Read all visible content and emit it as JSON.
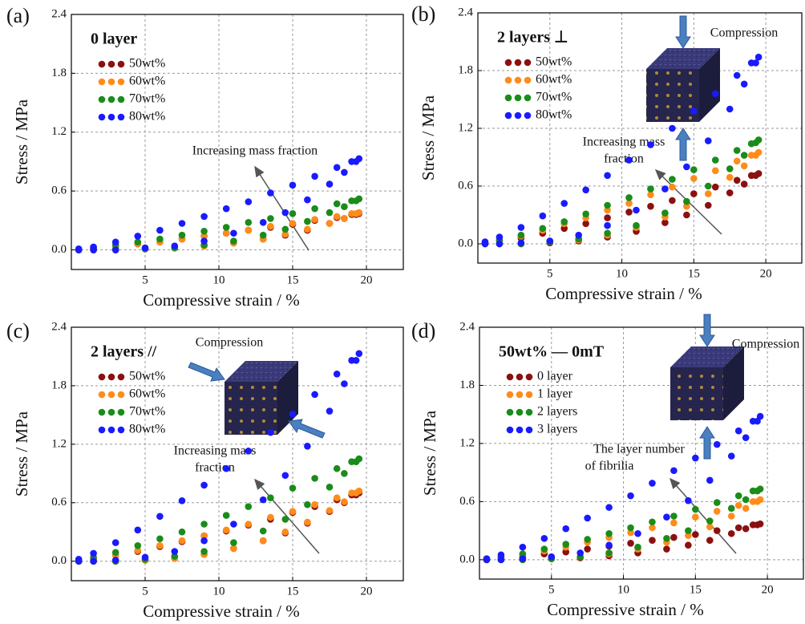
{
  "chart_data": [
    {
      "type": "scatter",
      "panel_label": "(a)",
      "legend_title": "0 layer",
      "xlabel": "Compressive strain / %",
      "ylabel": "Stress / MPa",
      "annotations": [
        "Increasing mass fraction"
      ],
      "xlim": [
        0,
        22.5
      ],
      "ylim": [
        -0.2,
        2.4
      ],
      "xticks": [
        5,
        10,
        15,
        20
      ],
      "yticks": [
        {
          "value": 0,
          "label": "0.0"
        },
        0.6,
        1.2,
        1.8,
        2.4
      ],
      "grid": true,
      "x": [
        0.5,
        1.5,
        3,
        4.5,
        6,
        7.5,
        9,
        10.5,
        12,
        13.5,
        15,
        16.5,
        18,
        19,
        19.5,
        19.3,
        18.5,
        17.5,
        16,
        14.5,
        13,
        11,
        9,
        7,
        5,
        3,
        1.5,
        0.5
      ],
      "series": [
        {
          "name": "50wt%",
          "color": "#8b1010",
          "values": [
            0,
            0.01,
            0.03,
            0.06,
            0.08,
            0.11,
            0.14,
            0.17,
            0.2,
            0.23,
            0.26,
            0.3,
            0.33,
            0.36,
            0.37,
            0.36,
            0.32,
            0.27,
            0.2,
            0.15,
            0.11,
            0.07,
            0.04,
            0.02,
            0.01,
            0,
            0,
            0
          ]
        },
        {
          "name": "60wt%",
          "color": "#ff8c1a",
          "values": [
            0,
            0.01,
            0.03,
            0.06,
            0.08,
            0.11,
            0.14,
            0.17,
            0.2,
            0.24,
            0.27,
            0.31,
            0.34,
            0.37,
            0.38,
            0.37,
            0.32,
            0.27,
            0.21,
            0.16,
            0.11,
            0.07,
            0.04,
            0.02,
            0.01,
            0,
            0,
            0
          ]
        },
        {
          "name": "70wt%",
          "color": "#1a8c1a",
          "values": [
            0,
            0.02,
            0.05,
            0.08,
            0.11,
            0.15,
            0.19,
            0.23,
            0.28,
            0.32,
            0.37,
            0.42,
            0.47,
            0.5,
            0.52,
            0.5,
            0.44,
            0.38,
            0.29,
            0.21,
            0.15,
            0.09,
            0.05,
            0.02,
            0.01,
            0,
            0,
            0
          ]
        },
        {
          "name": "80wt%",
          "color": "#1a1aff",
          "values": [
            0.01,
            0.03,
            0.08,
            0.14,
            0.2,
            0.27,
            0.34,
            0.42,
            0.49,
            0.58,
            0.66,
            0.75,
            0.84,
            0.9,
            0.93,
            0.9,
            0.79,
            0.67,
            0.51,
            0.38,
            0.28,
            0.17,
            0.09,
            0.04,
            0.02,
            0,
            0,
            0
          ]
        }
      ]
    },
    {
      "type": "scatter",
      "panel_label": "(b)",
      "legend_title": "2 layers ⊥",
      "xlabel": "Compressive strain / %",
      "ylabel": "Stress / MPa",
      "annotations": [
        "Compression",
        "Increasing mass",
        "fraction"
      ],
      "xlim": [
        0,
        22.5
      ],
      "ylim": [
        -0.2,
        2.4
      ],
      "xticks": [
        5,
        10,
        15,
        20
      ],
      "yticks": [
        {
          "value": 0,
          "label": "0.0"
        },
        0.6,
        1.2,
        1.8,
        2.4
      ],
      "grid": true,
      "x": [
        0.5,
        1.5,
        3,
        4.5,
        6,
        7.5,
        9,
        10.5,
        12,
        13.5,
        15,
        16.5,
        18,
        19,
        19.5,
        19.3,
        18.5,
        17.5,
        16,
        14.5,
        13,
        11,
        9,
        7,
        5,
        3,
        1.5,
        0.5
      ],
      "series": [
        {
          "name": "50wt%",
          "color": "#8b1010",
          "values": [
            0.01,
            0.03,
            0.06,
            0.11,
            0.16,
            0.21,
            0.27,
            0.33,
            0.39,
            0.45,
            0.52,
            0.59,
            0.66,
            0.71,
            0.73,
            0.71,
            0.62,
            0.53,
            0.4,
            0.3,
            0.22,
            0.13,
            0.07,
            0.03,
            0.01,
            0,
            0,
            0
          ]
        },
        {
          "name": "60wt%",
          "color": "#ff8c1a",
          "values": [
            0.01,
            0.03,
            0.08,
            0.14,
            0.21,
            0.27,
            0.35,
            0.42,
            0.51,
            0.59,
            0.68,
            0.76,
            0.86,
            0.92,
            0.95,
            0.92,
            0.81,
            0.69,
            0.52,
            0.39,
            0.28,
            0.17,
            0.09,
            0.04,
            0.02,
            0,
            0,
            0
          ]
        },
        {
          "name": "70wt%",
          "color": "#1a8c1a",
          "values": [
            0.01,
            0.04,
            0.09,
            0.16,
            0.23,
            0.31,
            0.4,
            0.48,
            0.57,
            0.67,
            0.77,
            0.87,
            0.97,
            1.04,
            1.08,
            1.05,
            0.92,
            0.78,
            0.6,
            0.44,
            0.32,
            0.19,
            0.11,
            0.05,
            0.02,
            0,
            0,
            0
          ]
        },
        {
          "name": "80wt%",
          "color": "#1a1aff",
          "values": [
            0.02,
            0.07,
            0.17,
            0.29,
            0.42,
            0.56,
            0.71,
            0.87,
            1.03,
            1.2,
            1.38,
            1.56,
            1.75,
            1.88,
            1.94,
            1.88,
            1.66,
            1.4,
            1.07,
            0.8,
            0.57,
            0.35,
            0.19,
            0.09,
            0.03,
            0.01,
            0,
            0
          ]
        }
      ]
    },
    {
      "type": "scatter",
      "panel_label": "(c)",
      "legend_title": "2 layers //",
      "xlabel": "Compressive strain / %",
      "ylabel": "Stress / MPa",
      "annotations": [
        "Compression",
        "Increasing mass",
        "fraction"
      ],
      "xlim": [
        0,
        22.5
      ],
      "ylim": [
        -0.2,
        2.4
      ],
      "xticks": [
        5,
        10,
        15,
        20
      ],
      "yticks": [
        {
          "value": 0,
          "label": "0.0"
        },
        0.6,
        1.2,
        1.8,
        2.4
      ],
      "grid": true,
      "x": [
        0.5,
        1.5,
        3,
        4.5,
        6,
        7.5,
        9,
        10.5,
        12,
        13.5,
        15,
        16.5,
        18,
        19,
        19.5,
        19.3,
        18.5,
        17.5,
        16,
        14.5,
        13,
        11,
        9,
        7,
        5,
        3,
        1.5,
        0.5
      ],
      "series": [
        {
          "name": "50wt%",
          "color": "#8b1010",
          "values": [
            0.01,
            0.02,
            0.06,
            0.1,
            0.15,
            0.2,
            0.26,
            0.31,
            0.37,
            0.43,
            0.5,
            0.56,
            0.63,
            0.68,
            0.7,
            0.68,
            0.6,
            0.51,
            0.39,
            0.29,
            0.21,
            0.13,
            0.07,
            0.03,
            0.01,
            0,
            0,
            0
          ]
        },
        {
          "name": "60wt%",
          "color": "#ff8c1a",
          "values": [
            0.01,
            0.03,
            0.06,
            0.11,
            0.16,
            0.21,
            0.26,
            0.32,
            0.38,
            0.45,
            0.51,
            0.58,
            0.65,
            0.7,
            0.72,
            0.7,
            0.61,
            0.52,
            0.4,
            0.3,
            0.21,
            0.13,
            0.07,
            0.03,
            0.01,
            0,
            0,
            0
          ]
        },
        {
          "name": "70wt%",
          "color": "#1a8c1a",
          "values": [
            0.01,
            0.04,
            0.09,
            0.16,
            0.23,
            0.3,
            0.38,
            0.47,
            0.56,
            0.65,
            0.75,
            0.85,
            0.95,
            1.02,
            1.05,
            1.02,
            0.9,
            0.76,
            0.58,
            0.43,
            0.31,
            0.19,
            0.1,
            0.05,
            0.02,
            0,
            0,
            0
          ]
        },
        {
          "name": "80wt%",
          "color": "#1a1aff",
          "values": [
            0.02,
            0.08,
            0.19,
            0.32,
            0.46,
            0.62,
            0.78,
            0.95,
            1.13,
            1.32,
            1.51,
            1.71,
            1.92,
            2.06,
            2.13,
            2.06,
            1.82,
            1.54,
            1.18,
            0.88,
            0.63,
            0.38,
            0.21,
            0.1,
            0.04,
            0.01,
            0,
            0
          ]
        }
      ]
    },
    {
      "type": "scatter",
      "panel_label": "(d)",
      "legend_title": "50wt% — 0mT",
      "xlabel": "Compressive strain / %",
      "ylabel": "Stress / MPa",
      "annotations": [
        "Compression",
        "The layer number",
        "of fibrilia"
      ],
      "xlim": [
        0,
        22.5
      ],
      "ylim": [
        -0.2,
        2.4
      ],
      "xticks": [
        5,
        10,
        15,
        20
      ],
      "yticks": [
        {
          "value": 0,
          "label": "0.0"
        },
        0.6,
        1.2,
        1.8,
        2.4
      ],
      "grid": true,
      "x": [
        0.5,
        1.5,
        3,
        4.5,
        6,
        7.5,
        9,
        10.5,
        12,
        13.5,
        15,
        16.5,
        18,
        19,
        19.5,
        19.3,
        18.5,
        17.5,
        16,
        14.5,
        13,
        11,
        9,
        7,
        5,
        3,
        1.5,
        0.5
      ],
      "series": [
        {
          "name": "0 layer",
          "color": "#8b1010",
          "values": [
            0,
            0.01,
            0.03,
            0.06,
            0.08,
            0.11,
            0.14,
            0.17,
            0.2,
            0.23,
            0.26,
            0.3,
            0.33,
            0.36,
            0.37,
            0.36,
            0.32,
            0.27,
            0.2,
            0.15,
            0.11,
            0.07,
            0.04,
            0.02,
            0.01,
            0,
            0,
            0
          ]
        },
        {
          "name": "1 layer",
          "color": "#ff8c1a",
          "values": [
            0.01,
            0.02,
            0.05,
            0.09,
            0.13,
            0.18,
            0.23,
            0.28,
            0.33,
            0.38,
            0.44,
            0.5,
            0.56,
            0.6,
            0.62,
            0.6,
            0.53,
            0.45,
            0.34,
            0.25,
            0.18,
            0.11,
            0.06,
            0.03,
            0.01,
            0,
            0,
            0
          ]
        },
        {
          "name": "2 layers",
          "color": "#1a8c1a",
          "values": [
            0.01,
            0.03,
            0.06,
            0.11,
            0.16,
            0.21,
            0.27,
            0.33,
            0.39,
            0.45,
            0.52,
            0.59,
            0.66,
            0.71,
            0.73,
            0.71,
            0.62,
            0.53,
            0.4,
            0.3,
            0.22,
            0.13,
            0.07,
            0.03,
            0.01,
            0,
            0,
            0
          ]
        },
        {
          "name": "3 layers",
          "color": "#1a1aff",
          "values": [
            0.01,
            0.05,
            0.13,
            0.22,
            0.32,
            0.43,
            0.54,
            0.66,
            0.79,
            0.92,
            1.05,
            1.19,
            1.33,
            1.43,
            1.48,
            1.43,
            1.26,
            1.07,
            0.82,
            0.61,
            0.44,
            0.27,
            0.15,
            0.07,
            0.03,
            0.01,
            0,
            0
          ]
        }
      ]
    }
  ]
}
